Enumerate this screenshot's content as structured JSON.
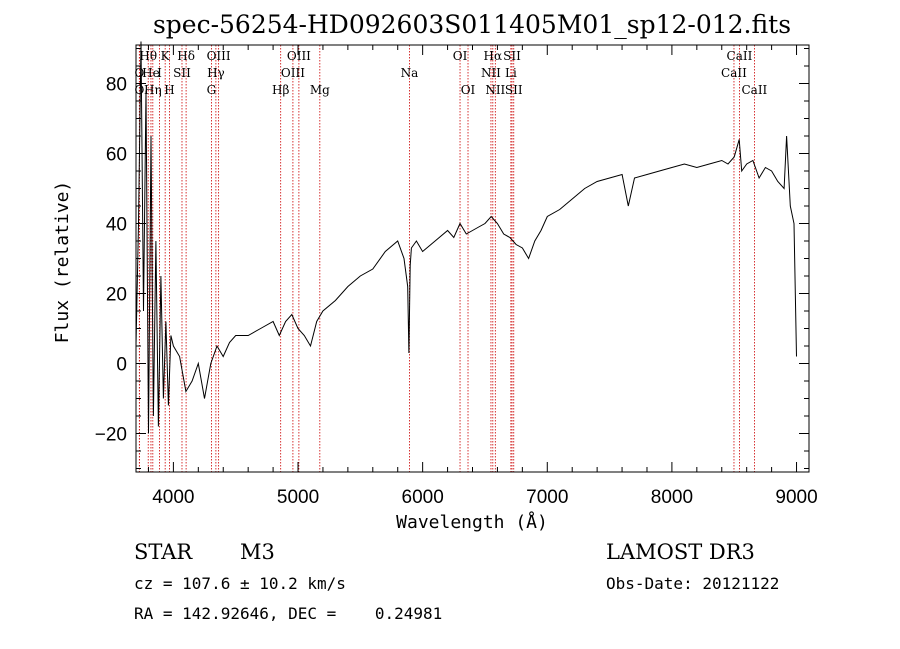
{
  "chart_data": {
    "type": "line",
    "title": "spec-56254-HD092603S011405M01_sp12-012.fits",
    "xlabel": "Wavelength (Å)",
    "ylabel": "Flux (relative)",
    "xlim": [
      3700,
      9100
    ],
    "ylim": [
      -31,
      91
    ],
    "x_ticks": [
      4000,
      5000,
      6000,
      7000,
      8000,
      9000
    ],
    "y_ticks": [
      -20,
      0,
      20,
      40,
      60,
      80
    ],
    "series": [
      {
        "name": "flux",
        "x": [
          3700,
          3720,
          3740,
          3760,
          3780,
          3800,
          3820,
          3840,
          3860,
          3880,
          3900,
          3920,
          3940,
          3960,
          3980,
          4000,
          4050,
          4100,
          4150,
          4200,
          4250,
          4300,
          4350,
          4400,
          4450,
          4500,
          4600,
          4700,
          4800,
          4850,
          4900,
          4950,
          5000,
          5050,
          5100,
          5150,
          5200,
          5300,
          5400,
          5500,
          5600,
          5700,
          5800,
          5850,
          5880,
          5890,
          5900,
          5910,
          5950,
          6000,
          6100,
          6200,
          6250,
          6300,
          6350,
          6400,
          6450,
          6500,
          6550,
          6600,
          6650,
          6700,
          6750,
          6800,
          6850,
          6900,
          6950,
          7000,
          7100,
          7200,
          7300,
          7400,
          7500,
          7600,
          7650,
          7700,
          7800,
          7900,
          8000,
          8100,
          8200,
          8300,
          8400,
          8450,
          8500,
          8540,
          8560,
          8600,
          8650,
          8700,
          8750,
          8800,
          8850,
          8900,
          8920,
          8950,
          8980,
          9000
        ],
        "y": [
          5,
          40,
          92,
          15,
          78,
          -20,
          65,
          -15,
          35,
          -18,
          25,
          -10,
          12,
          -12,
          8,
          5,
          2,
          -8,
          -5,
          0,
          -10,
          0,
          5,
          2,
          6,
          8,
          8,
          10,
          12,
          8,
          12,
          14,
          10,
          8,
          5,
          12,
          15,
          18,
          22,
          25,
          27,
          32,
          35,
          30,
          22,
          3,
          28,
          33,
          35,
          32,
          35,
          38,
          36,
          40,
          37,
          38,
          39,
          40,
          42,
          40,
          37,
          36,
          34,
          33,
          30,
          35,
          38,
          42,
          44,
          47,
          50,
          52,
          53,
          54,
          45,
          53,
          54,
          55,
          56,
          57,
          56,
          57,
          58,
          57,
          59,
          64,
          55,
          57,
          58,
          53,
          56,
          55,
          52,
          50,
          65,
          45,
          40,
          2
        ]
      }
    ],
    "spectral_lines": [
      {
        "label": "O",
        "wavelength": 3727,
        "row": 1
      },
      {
        "label": "O",
        "wavelength": 3727,
        "row": 2
      },
      {
        "label": "Hθ",
        "wavelength": 3798,
        "row": 0
      },
      {
        "label": "He",
        "wavelength": 3820,
        "row": 1
      },
      {
        "label": "Hη",
        "wavelength": 3835,
        "row": 2
      },
      {
        "label": "K",
        "wavelength": 3934,
        "row": 0
      },
      {
        "label": "I",
        "wavelength": 3889,
        "row": 1
      },
      {
        "label": "SII",
        "wavelength": 4069,
        "row": 1
      },
      {
        "label": "H",
        "wavelength": 3969,
        "row": 2
      },
      {
        "label": "Hδ",
        "wavelength": 4102,
        "row": 0
      },
      {
        "label": "OIII",
        "wavelength": 4363,
        "row": 0
      },
      {
        "label": "Hγ",
        "wavelength": 4341,
        "row": 1
      },
      {
        "label": "G",
        "wavelength": 4305,
        "row": 2
      },
      {
        "label": "Hβ",
        "wavelength": 4861,
        "row": 2
      },
      {
        "label": "OIII",
        "wavelength": 4959,
        "row": 1
      },
      {
        "label": "OIII",
        "wavelength": 5007,
        "row": 0
      },
      {
        "label": "Mg",
        "wavelength": 5175,
        "row": 2
      },
      {
        "label": "Na",
        "wavelength": 5894,
        "row": 1
      },
      {
        "label": "OI",
        "wavelength": 6300,
        "row": 0
      },
      {
        "label": "OI",
        "wavelength": 6364,
        "row": 2
      },
      {
        "label": "Hα",
        "wavelength": 6563,
        "row": 0
      },
      {
        "label": "NII",
        "wavelength": 6548,
        "row": 1
      },
      {
        "label": "NII",
        "wavelength": 6583,
        "row": 2
      },
      {
        "label": "SII",
        "wavelength": 6717,
        "row": 0
      },
      {
        "label": "Li",
        "wavelength": 6708,
        "row": 1
      },
      {
        "label": "SII",
        "wavelength": 6731,
        "row": 2
      },
      {
        "label": "CaII",
        "wavelength": 8542,
        "row": 0
      },
      {
        "label": "CaII",
        "wavelength": 8498,
        "row": 1
      },
      {
        "label": "CaII",
        "wavelength": 8662,
        "row": 2
      }
    ]
  },
  "info": {
    "object_class": "STAR",
    "subclass": "M3",
    "survey": "LAMOST DR3",
    "redshift_text": "cz = 107.6 ± 10.2 km/s",
    "obs_date_text": "Obs-Date: 20121122",
    "coords_text": "RA = 142.92646, DEC =    0.24981"
  },
  "colors": {
    "spectrum": "#000000",
    "line_marker": "#cc0000",
    "axes": "#000000"
  }
}
